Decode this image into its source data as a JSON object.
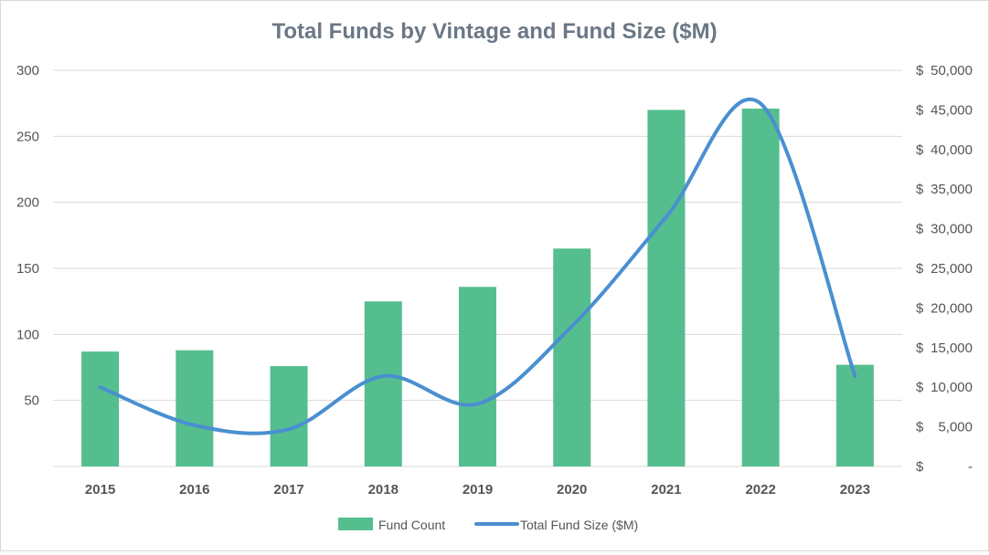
{
  "chart_data": {
    "type": "bar",
    "title": "Total Funds by Vintage and Fund Size ($M)",
    "categories": [
      "2015",
      "2016",
      "2017",
      "2018",
      "2019",
      "2020",
      "2021",
      "2022",
      "2023"
    ],
    "series": [
      {
        "name": "Fund Count",
        "type": "bar",
        "axis": "left",
        "color": "#55be8e",
        "values": [
          87,
          88,
          76,
          125,
          136,
          165,
          270,
          271,
          77
        ]
      },
      {
        "name": "Total Fund Size ($M)",
        "type": "line",
        "smooth": true,
        "axis": "right",
        "color": "#4a8fd0",
        "values": [
          10000,
          5200,
          4700,
          11400,
          7900,
          17700,
          31500,
          45800,
          11400
        ]
      }
    ],
    "y_left": {
      "range": [
        0,
        300
      ],
      "tick_values": [
        50,
        100,
        150,
        200,
        250,
        300
      ],
      "tick_labels": [
        "50",
        "100",
        "150",
        "200",
        "250",
        "300"
      ]
    },
    "y_right": {
      "range": [
        0,
        50000
      ],
      "tick_values": [
        0,
        5000,
        10000,
        15000,
        20000,
        25000,
        30000,
        35000,
        40000,
        45000,
        50000
      ],
      "tick_labels": [
        "$-",
        "$5,000",
        "$10,000",
        "$15,000",
        "$20,000",
        "$25,000",
        "$30,000",
        "$35,000",
        "$40,000",
        "$45,000",
        "$50,000"
      ]
    },
    "grid": true,
    "legend": "bottom"
  }
}
